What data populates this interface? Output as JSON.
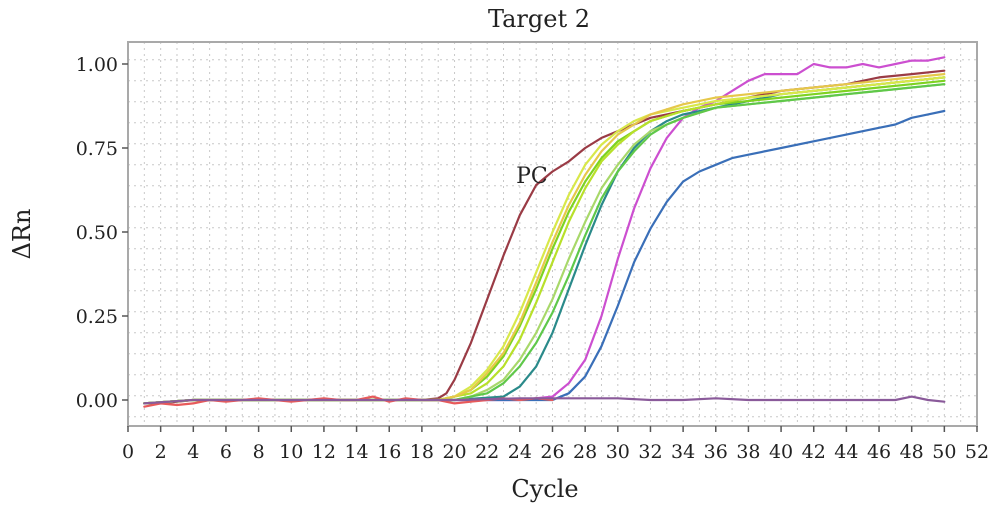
{
  "chart_data": {
    "type": "line",
    "title": "Target 2",
    "xlabel": "Cycle",
    "ylabel": "ΔRn",
    "xlim": [
      0,
      52
    ],
    "ylim": [
      -0.05,
      1.06
    ],
    "xticks": [
      0,
      2,
      4,
      6,
      8,
      10,
      12,
      14,
      16,
      18,
      20,
      22,
      24,
      26,
      28,
      30,
      32,
      34,
      36,
      38,
      40,
      42,
      44,
      46,
      48,
      50,
      52
    ],
    "xtick_labels": [
      "0",
      "2",
      "4",
      "6",
      "8",
      "10",
      "12",
      "14",
      "16",
      "18",
      "20",
      "22",
      "24",
      "26",
      "28",
      "30",
      "32",
      "34",
      "36",
      "38",
      "40",
      "42",
      "44",
      "46",
      "48",
      "50",
      "52"
    ],
    "yticks": [
      0,
      0.25,
      0.5,
      0.75,
      1.0
    ],
    "ytick_labels": [
      "0.00",
      "0.25",
      "0.50",
      "0.75",
      "1.00"
    ],
    "grid": true,
    "annotations": [
      {
        "text": "PC",
        "x": 26.2,
        "y": 0.66
      }
    ],
    "series": [
      {
        "color": "#9a3b45",
        "x": [
          1,
          2,
          4,
          6,
          8,
          10,
          12,
          14,
          16,
          18,
          19,
          19.5,
          20,
          21,
          22,
          23,
          24,
          25,
          26,
          27,
          28,
          29,
          30,
          31,
          32,
          33,
          34,
          36,
          38,
          40,
          42,
          44,
          46,
          48,
          50
        ],
        "y": [
          -0.01,
          -0.01,
          0,
          0,
          0,
          0,
          0,
          0,
          0,
          0,
          0.005,
          0.02,
          0.06,
          0.17,
          0.3,
          0.43,
          0.55,
          0.64,
          0.68,
          0.71,
          0.75,
          0.78,
          0.8,
          0.82,
          0.84,
          0.85,
          0.86,
          0.88,
          0.9,
          0.92,
          0.93,
          0.94,
          0.96,
          0.97,
          0.98
        ]
      },
      {
        "color": "#cc4fd0",
        "x": [
          1,
          4,
          8,
          12,
          16,
          20,
          24,
          26,
          27,
          28,
          29,
          30,
          31,
          32,
          33,
          34,
          35,
          36,
          37,
          38,
          39,
          40,
          41,
          42,
          43,
          44,
          45,
          46,
          47,
          48,
          49,
          50
        ],
        "y": [
          -0.01,
          0,
          0,
          0,
          0,
          0,
          0,
          0.01,
          0.05,
          0.12,
          0.25,
          0.42,
          0.57,
          0.69,
          0.78,
          0.84,
          0.87,
          0.89,
          0.92,
          0.95,
          0.97,
          0.97,
          0.97,
          1.0,
          0.99,
          0.99,
          1.0,
          0.99,
          1.0,
          1.01,
          1.01,
          1.02
        ]
      },
      {
        "color": "#3a6fb8",
        "x": [
          1,
          4,
          8,
          12,
          16,
          20,
          24,
          26,
          27,
          28,
          29,
          30,
          31,
          32,
          33,
          34,
          35,
          36,
          37,
          38,
          40,
          42,
          44,
          46,
          47,
          48,
          49,
          50
        ],
        "y": [
          -0.01,
          0,
          0,
          0,
          0,
          0,
          0,
          0,
          0.02,
          0.07,
          0.16,
          0.28,
          0.41,
          0.51,
          0.59,
          0.65,
          0.68,
          0.7,
          0.72,
          0.73,
          0.75,
          0.77,
          0.79,
          0.81,
          0.82,
          0.84,
          0.85,
          0.86
        ]
      },
      {
        "color": "#2a8a8a",
        "x": [
          1,
          4,
          8,
          12,
          16,
          20,
          23,
          24,
          25,
          26,
          27,
          28,
          29,
          30,
          31,
          32,
          33,
          34,
          36,
          38,
          40,
          42,
          44,
          46,
          48,
          50
        ],
        "y": [
          -0.01,
          0,
          0,
          0,
          0,
          0,
          0.01,
          0.04,
          0.1,
          0.2,
          0.33,
          0.46,
          0.58,
          0.68,
          0.75,
          0.8,
          0.83,
          0.85,
          0.87,
          0.89,
          0.91,
          0.92,
          0.93,
          0.94,
          0.95,
          0.96
        ]
      },
      {
        "color": "#7ed321",
        "x": [
          1,
          4,
          8,
          12,
          16,
          19,
          20,
          21,
          22,
          23,
          24,
          25,
          26,
          27,
          28,
          29,
          30,
          31,
          32,
          34,
          36,
          38,
          40,
          42,
          44,
          46,
          48,
          50
        ],
        "y": [
          -0.01,
          0,
          0,
          0,
          0,
          0,
          0.01,
          0.03,
          0.07,
          0.13,
          0.22,
          0.33,
          0.45,
          0.56,
          0.65,
          0.72,
          0.77,
          0.8,
          0.83,
          0.86,
          0.88,
          0.89,
          0.9,
          0.91,
          0.92,
          0.93,
          0.94,
          0.95
        ]
      },
      {
        "color": "#b8e02a",
        "x": [
          1,
          4,
          8,
          12,
          16,
          19,
          20,
          21,
          22,
          23,
          24,
          25,
          26,
          27,
          28,
          29,
          30,
          31,
          32,
          34,
          36,
          38,
          40,
          42,
          44,
          46,
          48,
          50
        ],
        "y": [
          -0.01,
          0,
          0,
          0,
          0,
          0,
          0.01,
          0.02,
          0.05,
          0.1,
          0.18,
          0.29,
          0.41,
          0.53,
          0.63,
          0.71,
          0.76,
          0.8,
          0.83,
          0.86,
          0.88,
          0.9,
          0.91,
          0.92,
          0.93,
          0.94,
          0.95,
          0.96
        ]
      },
      {
        "color": "#d8e84a",
        "x": [
          1,
          4,
          8,
          12,
          16,
          19,
          20,
          21,
          22,
          23,
          24,
          25,
          26,
          27,
          28,
          29,
          30,
          31,
          32,
          34,
          36,
          38,
          40,
          42,
          44,
          46,
          48,
          50
        ],
        "y": [
          -0.01,
          0,
          0,
          0,
          0,
          0,
          0.01,
          0.04,
          0.09,
          0.16,
          0.26,
          0.38,
          0.5,
          0.61,
          0.7,
          0.76,
          0.8,
          0.83,
          0.85,
          0.87,
          0.89,
          0.9,
          0.91,
          0.92,
          0.93,
          0.94,
          0.95,
          0.96
        ]
      },
      {
        "color": "#e6c84a",
        "x": [
          1,
          4,
          8,
          12,
          16,
          19,
          20,
          21,
          22,
          23,
          24,
          25,
          26,
          27,
          28,
          29,
          30,
          31,
          32,
          34,
          36,
          38,
          40,
          42,
          44,
          46,
          48,
          50
        ],
        "y": [
          -0.01,
          0,
          0,
          0,
          0,
          0,
          0.01,
          0.03,
          0.08,
          0.14,
          0.23,
          0.35,
          0.47,
          0.58,
          0.67,
          0.74,
          0.79,
          0.82,
          0.85,
          0.88,
          0.9,
          0.91,
          0.92,
          0.93,
          0.94,
          0.95,
          0.96,
          0.97
        ]
      },
      {
        "color": "#a8d86a",
        "x": [
          1,
          4,
          8,
          12,
          16,
          20,
          21,
          22,
          23,
          24,
          25,
          26,
          27,
          28,
          29,
          30,
          31,
          32,
          33,
          34,
          36,
          38,
          40,
          42,
          44,
          46,
          48,
          50
        ],
        "y": [
          -0.01,
          0,
          0,
          0,
          0,
          0,
          0.01,
          0.03,
          0.06,
          0.12,
          0.2,
          0.3,
          0.42,
          0.53,
          0.63,
          0.7,
          0.76,
          0.8,
          0.82,
          0.84,
          0.87,
          0.88,
          0.89,
          0.9,
          0.91,
          0.92,
          0.93,
          0.94
        ]
      },
      {
        "color": "#5fc84a",
        "x": [
          1,
          4,
          8,
          12,
          16,
          20,
          21,
          22,
          23,
          24,
          25,
          26,
          27,
          28,
          29,
          30,
          31,
          32,
          33,
          34,
          36,
          38,
          40,
          42,
          44,
          46,
          48,
          50
        ],
        "y": [
          -0.01,
          0,
          0,
          0,
          0,
          0,
          0.01,
          0.02,
          0.05,
          0.1,
          0.17,
          0.26,
          0.37,
          0.49,
          0.6,
          0.68,
          0.74,
          0.79,
          0.82,
          0.84,
          0.87,
          0.88,
          0.89,
          0.9,
          0.91,
          0.92,
          0.93,
          0.94
        ]
      },
      {
        "color": "#e85a5a",
        "x": [
          1,
          2,
          3,
          4,
          5,
          6,
          7,
          8,
          9,
          10,
          11,
          12,
          13,
          14,
          15,
          16,
          17,
          18,
          19,
          20,
          21,
          22,
          23,
          24,
          25,
          26
        ],
        "y": [
          -0.02,
          -0.01,
          -0.015,
          -0.01,
          0,
          -0.005,
          0,
          0.005,
          0,
          -0.005,
          0,
          0.005,
          0,
          0,
          0.01,
          -0.005,
          0.005,
          0,
          0,
          -0.01,
          -0.005,
          0,
          0.005,
          0,
          0.005,
          0
        ]
      },
      {
        "color": "#8a5a9a",
        "x": [
          1,
          4,
          8,
          12,
          16,
          20,
          24,
          26,
          28,
          30,
          32,
          34,
          36,
          38,
          40,
          42,
          44,
          46,
          47,
          48,
          49,
          50
        ],
        "y": [
          -0.01,
          0,
          0,
          0,
          0,
          0,
          0.005,
          0.005,
          0.005,
          0.005,
          0,
          0,
          0.005,
          0,
          0,
          0,
          0,
          0,
          0,
          0.01,
          0,
          -0.005
        ]
      }
    ]
  }
}
